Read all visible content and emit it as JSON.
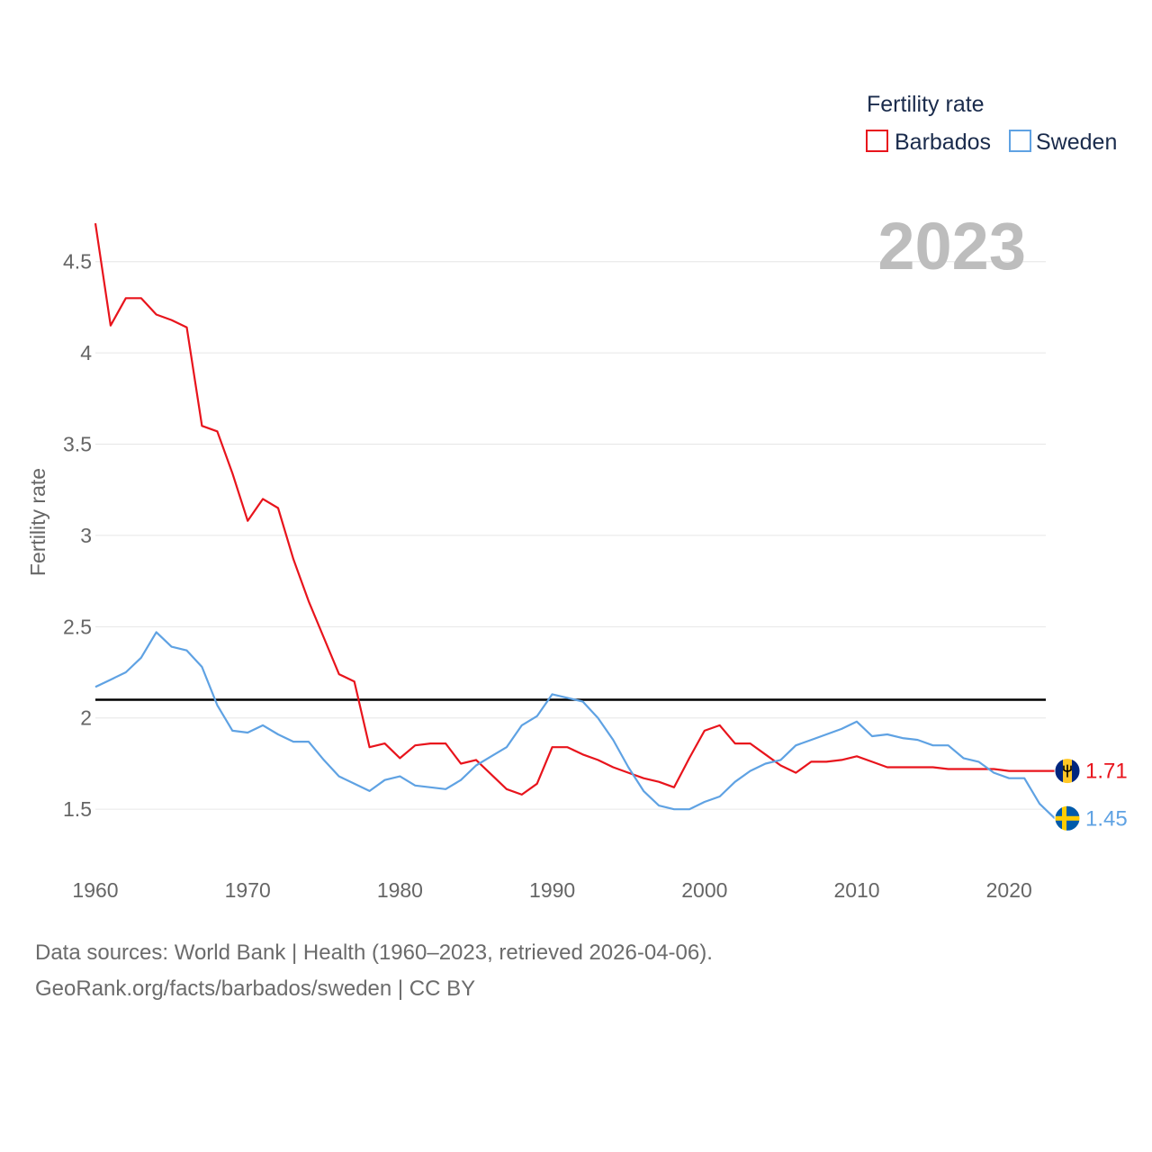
{
  "chart_data": {
    "type": "line",
    "ylabel": "Fertility rate",
    "legend_title": "Fertility rate",
    "legend_position": "top-right",
    "current_year_label": "2023",
    "x_ticks": [
      1960,
      1970,
      1980,
      1990,
      2000,
      2010,
      2020
    ],
    "y_ticks": [
      1.5,
      2,
      2.5,
      3,
      3.5,
      4,
      4.5
    ],
    "y_tick_labels": [
      "1.5",
      "2",
      "2.5",
      "3",
      "3.5",
      "4",
      "4.5"
    ],
    "x_tick_labels": [
      "1960",
      "1970",
      "1980",
      "1990",
      "2000",
      "2010",
      "2020"
    ],
    "xlim": [
      1960,
      2023
    ],
    "ylim": [
      1.2,
      4.75
    ],
    "grid": true,
    "reference_line": {
      "y": 2.1,
      "color": "#000000"
    },
    "x": [
      1960,
      1961,
      1962,
      1963,
      1964,
      1965,
      1966,
      1967,
      1968,
      1969,
      1970,
      1971,
      1972,
      1973,
      1974,
      1975,
      1976,
      1977,
      1978,
      1979,
      1980,
      1981,
      1982,
      1983,
      1984,
      1985,
      1986,
      1987,
      1988,
      1989,
      1990,
      1991,
      1992,
      1993,
      1994,
      1995,
      1996,
      1997,
      1998,
      1999,
      2000,
      2001,
      2002,
      2003,
      2004,
      2005,
      2006,
      2007,
      2008,
      2009,
      2010,
      2011,
      2012,
      2013,
      2014,
      2015,
      2016,
      2017,
      2018,
      2019,
      2020,
      2021,
      2022,
      2023
    ],
    "series": [
      {
        "name": "Barbados",
        "color": "#e8141c",
        "end_label": "1.71",
        "flag": "barbados-flag-icon",
        "values": [
          4.71,
          4.15,
          4.3,
          4.3,
          4.21,
          4.18,
          4.14,
          3.6,
          3.57,
          3.34,
          3.08,
          3.2,
          3.15,
          2.87,
          2.64,
          2.44,
          2.24,
          2.2,
          1.84,
          1.86,
          1.78,
          1.85,
          1.86,
          1.86,
          1.75,
          1.77,
          1.69,
          1.61,
          1.58,
          1.64,
          1.84,
          1.84,
          1.8,
          1.77,
          1.73,
          1.7,
          1.67,
          1.65,
          1.62,
          1.78,
          1.93,
          1.96,
          1.86,
          1.86,
          1.8,
          1.74,
          1.7,
          1.76,
          1.76,
          1.77,
          1.79,
          1.76,
          1.73,
          1.73,
          1.73,
          1.73,
          1.72,
          1.72,
          1.72,
          1.72,
          1.71,
          1.71,
          1.71,
          1.71
        ]
      },
      {
        "name": "Sweden",
        "color": "#5fa2e3",
        "end_label": "1.45",
        "flag": "sweden-flag-icon",
        "values": [
          2.17,
          2.21,
          2.25,
          2.33,
          2.47,
          2.39,
          2.37,
          2.28,
          2.07,
          1.93,
          1.92,
          1.96,
          1.91,
          1.87,
          1.87,
          1.77,
          1.68,
          1.64,
          1.6,
          1.66,
          1.68,
          1.63,
          1.62,
          1.61,
          1.66,
          1.74,
          1.79,
          1.84,
          1.96,
          2.01,
          2.13,
          2.11,
          2.09,
          2.0,
          1.88,
          1.73,
          1.6,
          1.52,
          1.5,
          1.5,
          1.54,
          1.57,
          1.65,
          1.71,
          1.75,
          1.77,
          1.85,
          1.88,
          1.91,
          1.94,
          1.98,
          1.9,
          1.91,
          1.89,
          1.88,
          1.85,
          1.85,
          1.78,
          1.76,
          1.7,
          1.67,
          1.67,
          1.53,
          1.45
        ]
      }
    ]
  },
  "footer": {
    "source_line1": "Data sources: World Bank | Health (1960–2023, retrieved 2026-04-06).",
    "source_line2": "GeoRank.org/facts/barbados/sweden | CC BY"
  }
}
